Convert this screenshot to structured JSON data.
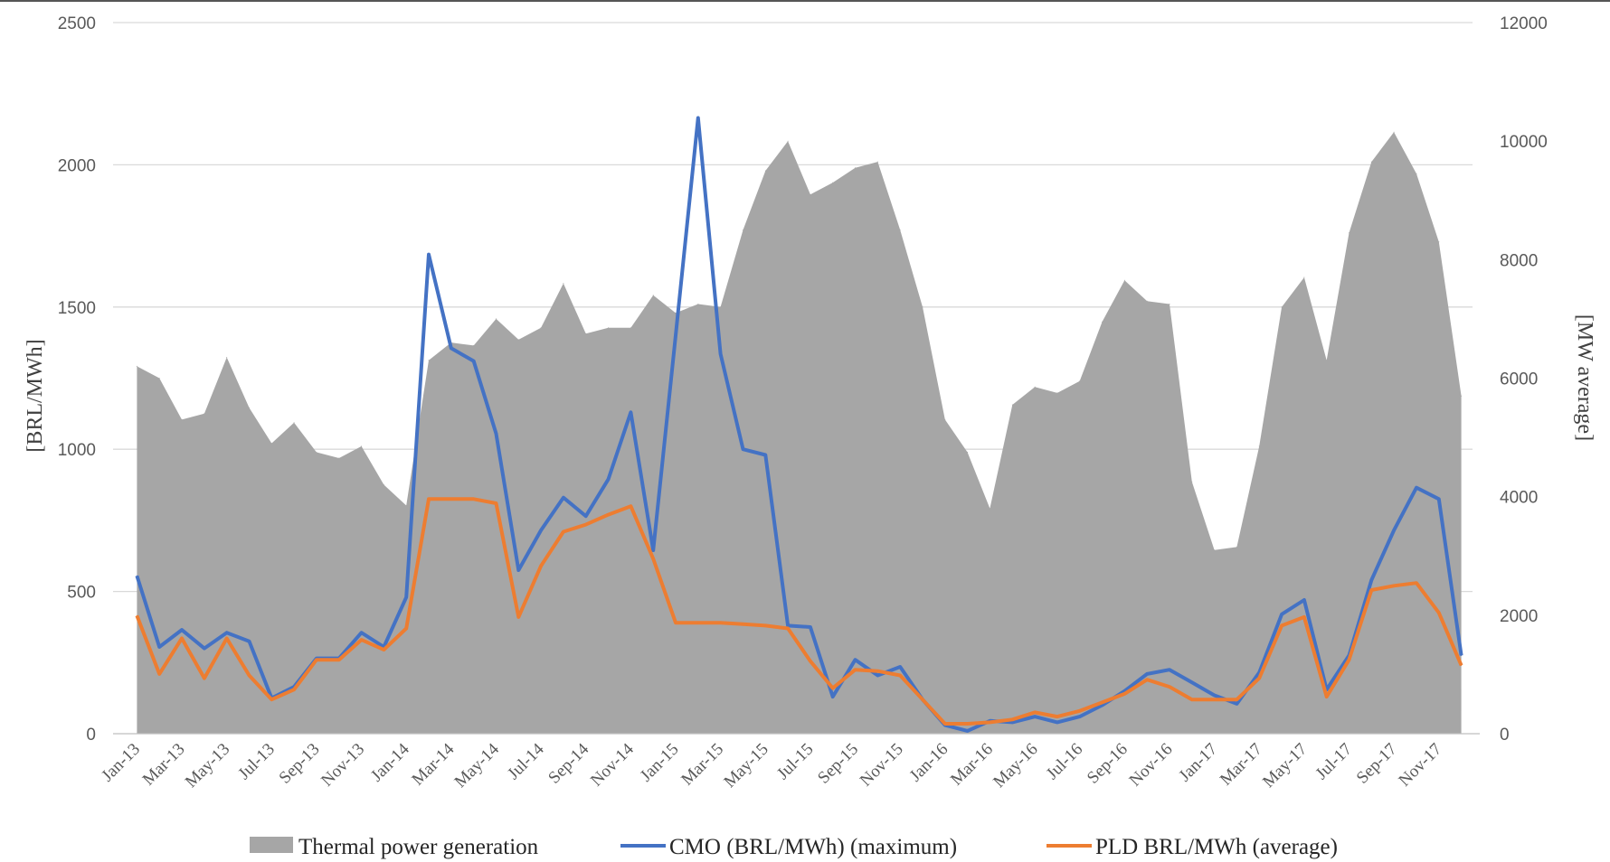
{
  "chart_data": {
    "type": "area",
    "title": "",
    "y_left": {
      "label": "[BRL/MWh]",
      "lim": [
        0,
        2500
      ],
      "ticks": [
        0,
        500,
        1000,
        1500,
        2000,
        2500
      ]
    },
    "y_right": {
      "label": "[MW average]",
      "lim": [
        0,
        12000
      ],
      "ticks": [
        0,
        2000,
        4000,
        6000,
        8000,
        10000,
        12000
      ]
    },
    "grid": true,
    "legend_position": "bottom",
    "x": [
      "Jan-13",
      "Feb-13",
      "Mar-13",
      "Apr-13",
      "May-13",
      "Jun-13",
      "Jul-13",
      "Aug-13",
      "Sep-13",
      "Oct-13",
      "Nov-13",
      "Dec-13",
      "Jan-14",
      "Feb-14",
      "Mar-14",
      "Apr-14",
      "May-14",
      "Jun-14",
      "Jul-14",
      "Aug-14",
      "Sep-14",
      "Oct-14",
      "Nov-14",
      "Dec-14",
      "Jan-15",
      "Feb-15",
      "Mar-15",
      "Apr-15",
      "May-15",
      "Jun-15",
      "Jul-15",
      "Aug-15",
      "Sep-15",
      "Oct-15",
      "Nov-15",
      "Dec-15",
      "Jan-16",
      "Feb-16",
      "Mar-16",
      "Apr-16",
      "May-16",
      "Jun-16",
      "Jul-16",
      "Aug-16",
      "Sep-16",
      "Oct-16",
      "Nov-16",
      "Dec-16",
      "Jan-17",
      "Feb-17",
      "Mar-17",
      "Apr-17",
      "May-17",
      "Jun-17",
      "Jul-17",
      "Aug-17",
      "Sep-17",
      "Oct-17",
      "Nov-17",
      "Dec-17"
    ],
    "x_tick_labels": [
      "Jan-13",
      "Mar-13",
      "May-13",
      "Jul-13",
      "Sep-13",
      "Nov-13",
      "Jan-14",
      "Mar-14",
      "May-14",
      "Jul-14",
      "Sep-14",
      "Nov-14",
      "Jan-15",
      "Mar-15",
      "May-15",
      "Jul-15",
      "Sep-15",
      "Nov-15",
      "Jan-16",
      "Mar-16",
      "May-16",
      "Jul-16",
      "Sep-16",
      "Nov-16",
      "Jan-17",
      "Mar-17",
      "May-17",
      "Jul-17",
      "Sep-17",
      "Nov-17"
    ],
    "series": [
      {
        "name": "Thermal power generation",
        "type": "area",
        "axis": "right",
        "color": "#a6a6a6",
        "values": [
          6200,
          6000,
          5300,
          5400,
          6350,
          5500,
          4900,
          5250,
          4750,
          4650,
          4850,
          4200,
          3850,
          6300,
          6600,
          6550,
          7000,
          6650,
          6850,
          7600,
          6750,
          6850,
          6850,
          7400,
          7100,
          7250,
          7200,
          8500,
          9500,
          10000,
          9100,
          9300,
          9550,
          9650,
          8500,
          7200,
          5300,
          4750,
          3800,
          5550,
          5850,
          5750,
          5950,
          6950,
          7650,
          7300,
          7250,
          4250,
          3100,
          3150,
          4850,
          7200,
          7700,
          6300,
          8450,
          9650,
          10150,
          9450,
          8300,
          5700
        ]
      },
      {
        "name": "CMO (BRL/MWh) (maximum)",
        "type": "line",
        "axis": "left",
        "color": "#4472c4",
        "values": [
          555,
          305,
          365,
          300,
          355,
          325,
          125,
          165,
          265,
          265,
          355,
          305,
          480,
          1685,
          1355,
          1310,
          1055,
          575,
          715,
          830,
          765,
          895,
          1130,
          645,
          1400,
          2165,
          1335,
          1000,
          980,
          380,
          375,
          130,
          260,
          205,
          235,
          120,
          30,
          10,
          45,
          40,
          60,
          40,
          60,
          100,
          150,
          210,
          225,
          180,
          135,
          105,
          215,
          420,
          470,
          155,
          275,
          540,
          715,
          865,
          825,
          275
        ]
      },
      {
        "name": "PLD BRL/MWh (average)",
        "type": "line",
        "axis": "left",
        "color": "#ed7d31",
        "values": [
          415,
          210,
          335,
          195,
          335,
          205,
          120,
          155,
          260,
          260,
          330,
          295,
          370,
          825,
          825,
          825,
          810,
          410,
          590,
          710,
          735,
          770,
          800,
          615,
          390,
          390,
          390,
          385,
          380,
          370,
          255,
          160,
          225,
          220,
          205,
          120,
          35,
          35,
          40,
          50,
          75,
          60,
          80,
          110,
          140,
          190,
          165,
          120,
          120,
          120,
          195,
          380,
          410,
          130,
          260,
          505,
          520,
          530,
          425,
          240
        ]
      }
    ]
  }
}
